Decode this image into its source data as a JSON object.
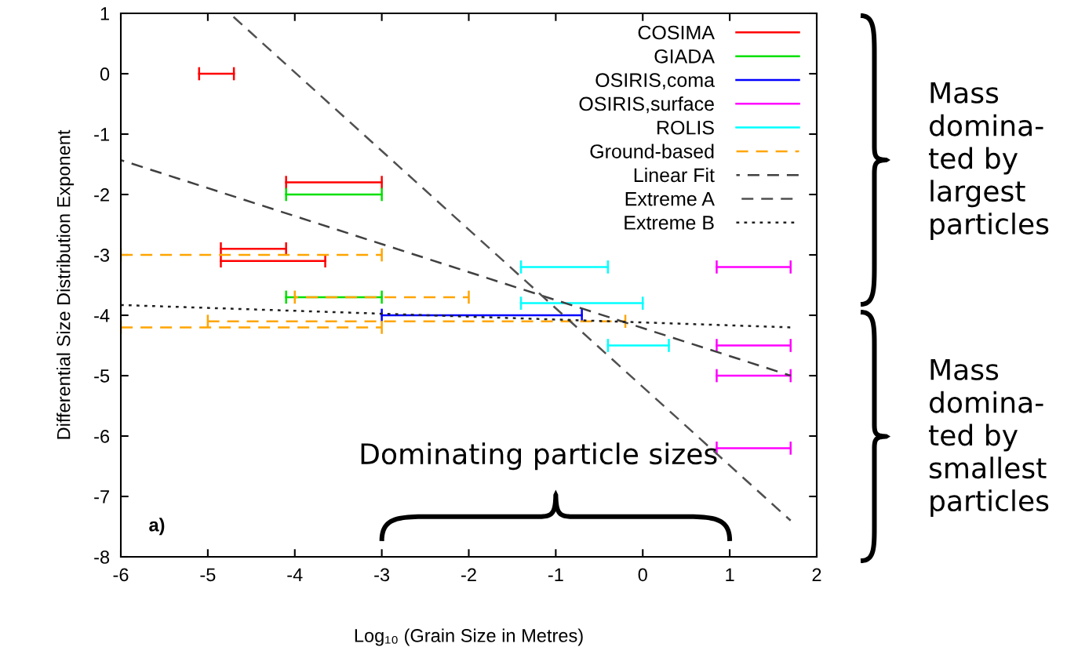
{
  "chart_data": {
    "type": "line",
    "xlabel": "Log₁₀ (Grain Size in Metres)",
    "ylabel": "Differential Size Distribution Exponent",
    "xlim": [
      -6,
      2
    ],
    "ylim": [
      -8,
      1
    ],
    "xticks": [
      -6,
      -5,
      -4,
      -3,
      -2,
      -1,
      0,
      1,
      2
    ],
    "yticks": [
      -8,
      -7,
      -6,
      -5,
      -4,
      -3,
      -2,
      -1,
      0,
      1
    ],
    "grid": false,
    "legend": "top right",
    "series": [
      {
        "name": "COSIMA",
        "color": "#ff0000",
        "line_style": "solid",
        "x": [
          -5.1,
          -4.7
        ],
        "values": [
          0,
          0
        ]
      },
      {
        "color": "#ff0000",
        "line_style": "solid",
        "x": [
          -4.1,
          -3.0
        ],
        "values": [
          -1.8,
          -1.8
        ]
      },
      {
        "color": "#ff0000",
        "line_style": "solid",
        "x": [
          -4.85,
          -4.1
        ],
        "values": [
          -2.9,
          -2.9
        ]
      },
      {
        "color": "#ff0000",
        "line_style": "solid",
        "x": [
          -4.85,
          -3.65
        ],
        "values": [
          -3.1,
          -3.1
        ]
      },
      {
        "name": "GIADA",
        "color": "#00e000",
        "line_style": "solid",
        "x": [
          -4.1,
          -3.0
        ],
        "values": [
          -2.0,
          -2.0
        ]
      },
      {
        "color": "#00e000",
        "line_style": "solid",
        "x": [
          -4.1,
          -3.0
        ],
        "values": [
          -3.7,
          -3.7
        ]
      },
      {
        "name": "OSIRIS,coma",
        "color": "#0000ff",
        "line_style": "solid",
        "x": [
          -3.0,
          -0.7
        ],
        "values": [
          -4.0,
          -4.0
        ]
      },
      {
        "name": "OSIRIS,surface",
        "color": "#ff00ff",
        "line_style": "solid",
        "x": [
          0.85,
          1.7
        ],
        "values": [
          -3.2,
          -3.2
        ]
      },
      {
        "color": "#ff00ff",
        "line_style": "solid",
        "x": [
          0.85,
          1.7
        ],
        "values": [
          -4.5,
          -4.5
        ]
      },
      {
        "color": "#ff00ff",
        "line_style": "solid",
        "x": [
          0.85,
          1.7
        ],
        "values": [
          -5.0,
          -5.0
        ]
      },
      {
        "color": "#ff00ff",
        "line_style": "solid",
        "x": [
          0.85,
          1.7
        ],
        "values": [
          -6.2,
          -6.2
        ]
      },
      {
        "name": "ROLIS",
        "color": "#00ffff",
        "line_style": "solid",
        "x": [
          -1.4,
          -0.4
        ],
        "values": [
          -3.2,
          -3.2
        ]
      },
      {
        "color": "#00ffff",
        "line_style": "solid",
        "x": [
          -1.4,
          0.0
        ],
        "values": [
          -3.8,
          -3.8
        ]
      },
      {
        "color": "#00ffff",
        "line_style": "solid",
        "x": [
          -0.4,
          0.3
        ],
        "values": [
          -4.5,
          -4.5
        ]
      },
      {
        "name": "Ground-based",
        "color": "#ffa500",
        "line_style": "dashed",
        "x": [
          -6.0,
          -3.0
        ],
        "values": [
          -3.0,
          -3.0
        ]
      },
      {
        "color": "#ffa500",
        "line_style": "dashed",
        "x": [
          -4.0,
          -2.0
        ],
        "values": [
          -3.7,
          -3.7
        ]
      },
      {
        "color": "#ffa500",
        "line_style": "dashed",
        "x": [
          -5.0,
          -0.2
        ],
        "values": [
          -4.1,
          -4.1
        ]
      },
      {
        "color": "#ffa500",
        "line_style": "dashed",
        "x": [
          -6.0,
          -3.0
        ],
        "values": [
          -4.2,
          -4.2
        ]
      },
      {
        "name": "Linear Fit",
        "color": "#404040",
        "line_style": "dashed",
        "x": [
          -6.0,
          1.7
        ],
        "values": [
          -1.43,
          -5.0
        ]
      },
      {
        "name": "Extreme A",
        "color": "#505050",
        "line_style": "dashed",
        "x": [
          -4.75,
          1.7
        ],
        "values": [
          1.0,
          -7.4
        ]
      },
      {
        "name": "Extreme B",
        "color": "#202020",
        "line_style": "dotted",
        "x": [
          -6.0,
          1.7
        ],
        "values": [
          -3.83,
          -4.2
        ]
      }
    ],
    "annotations": [
      "a)",
      "Dominating particle sizes",
      "Mass\ndomina-\nted by\nlargest\nparticles",
      "Mass\ndomina-\nted by\nsmallest\nparticles"
    ]
  }
}
